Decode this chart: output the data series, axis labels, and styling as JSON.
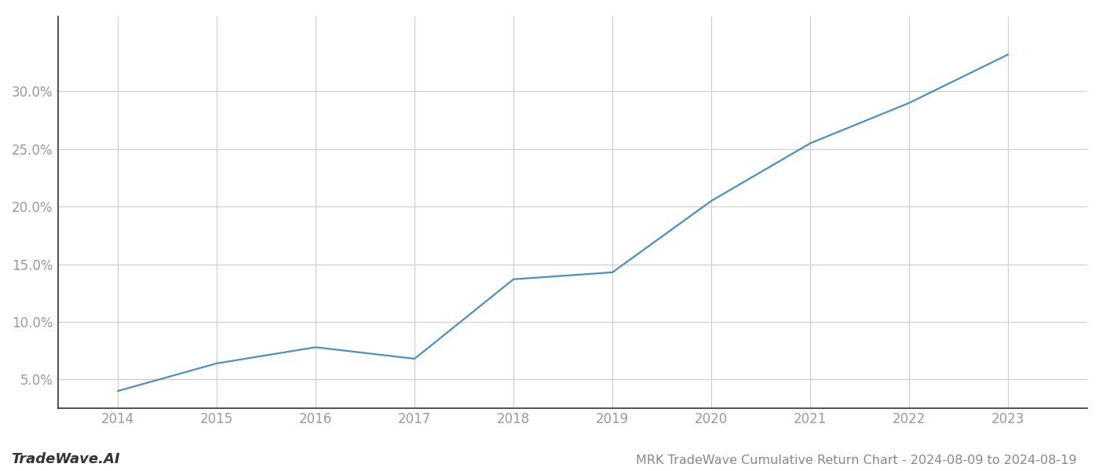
{
  "years": [
    2014,
    2015,
    2016,
    2017,
    2018,
    2019,
    2020,
    2021,
    2022,
    2023
  ],
  "values": [
    4.0,
    6.4,
    7.8,
    6.8,
    13.7,
    14.3,
    20.5,
    25.5,
    29.0,
    33.2
  ],
  "line_color": "#4a90c4",
  "line_width": 1.6,
  "background_color": "#ffffff",
  "grid_color": "#cccccc",
  "title": "MRK TradeWave Cumulative Return Chart - 2024-08-09 to 2024-08-19",
  "watermark": "TradeWave.AI",
  "ylim_min": 2.5,
  "ylim_max": 36.5,
  "yticks": [
    5.0,
    10.0,
    15.0,
    20.0,
    25.0,
    30.0
  ],
  "xlabel_fontsize": 12,
  "ylabel_fontsize": 12,
  "title_fontsize": 11.5,
  "watermark_fontsize": 13,
  "tick_label_color": "#999999",
  "spine_color": "#333333"
}
